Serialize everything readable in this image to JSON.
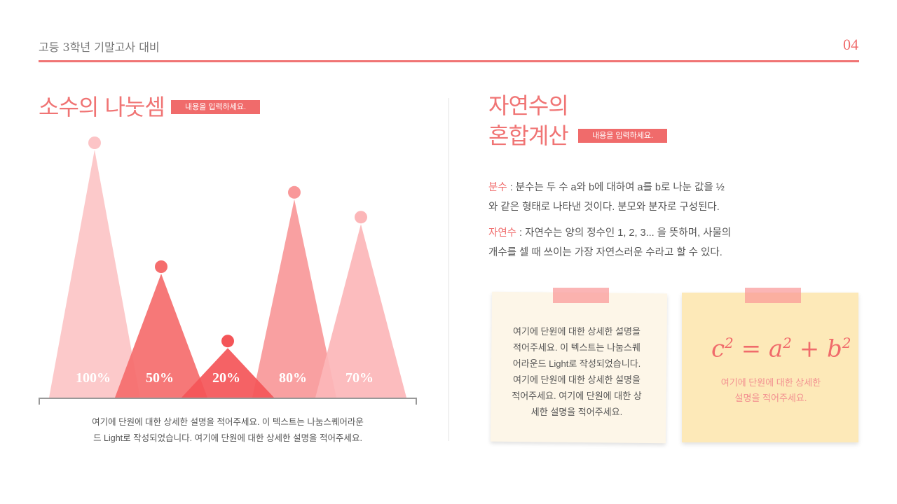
{
  "header": {
    "subtitle": "고등 3학년 기말고사 대비",
    "page_number": "04"
  },
  "left": {
    "title": "소수의 나눗셈",
    "tag": "내용을 입력하세요.",
    "description_line1": "여기에 단원에 대한 상세한 설명을 적어주세요. 이 텍스트는 나눔스퀘어라운",
    "description_line2": "드 Light로 작성되었습니다.  여기에 단원에 대한 상세한 설명을 적어주세요."
  },
  "chart_data": {
    "type": "bar",
    "categories": [
      "",
      "",
      "",
      "",
      ""
    ],
    "values": [
      100,
      50,
      20,
      80,
      70
    ],
    "data_labels": [
      "100%",
      "50%",
      "20%",
      "80%",
      "70%"
    ],
    "ylim": [
      0,
      100
    ],
    "grid": false,
    "legend": "none",
    "colors": [
      "#fcc4c6",
      "#f56d6d",
      "#f45558",
      "#f99899",
      "#fcb6b8"
    ]
  },
  "right": {
    "title_line1": "자연수의",
    "title_line2": "혼합계산",
    "tag": "내용을 입력하세요.",
    "def1_term": "분수",
    "def1_line1": " : 분수는 두 수 a와 b에 대하여 a를 b로 나눈 값을 ½",
    "def1_line2": "와 같은 형태로 나타낸 것이다. 분모와 분자로 구성된다.",
    "def2_term": "자연수",
    "def2_line1": " : 자연수는 양의 정수인 1, 2, 3... 을 뜻하며, 사물의",
    "def2_line2": "개수를 셀 때 쓰이는 가장 자연스러운 수라고 할 수 있다."
  },
  "notes": {
    "note1_lines": [
      "여기에 단원에 대한 상세한 설명을",
      "적어주세요. 이 텍스트는 나눔스퀘",
      "어라운드 Light로 작성되었습니다.",
      "여기에 단원에 대한 상세한 설명을",
      "적어주세요. 여기에 단원에 대한 상",
      "세한 설명을 적어주세요."
    ],
    "formula": {
      "c": "c",
      "exp1": "2",
      "eq": " = ",
      "a": "a",
      "exp2": "2",
      "plus": " + ",
      "b": "b",
      "exp3": "2"
    },
    "note2_line1": "여기에 단원에 대한 상세한",
    "note2_line2": "설명을 적어주세요."
  }
}
